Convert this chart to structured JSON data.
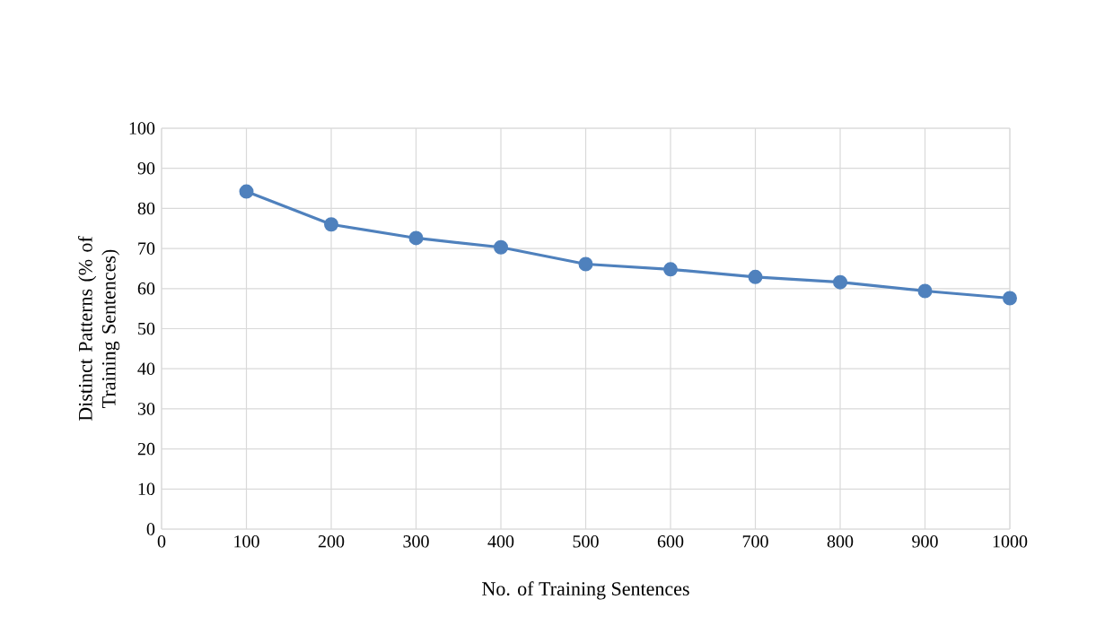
{
  "chart_data": {
    "type": "line",
    "xlabel": "No. of Training Sentences",
    "ylabel": "Distinct Patterns (% of Training Sentences)",
    "x": [
      100,
      200,
      300,
      400,
      500,
      600,
      700,
      800,
      900,
      1000
    ],
    "series": [
      {
        "color": "#4f81bd",
        "values": [
          84.2,
          76.0,
          72.6,
          70.3,
          66.1,
          64.8,
          62.9,
          61.6,
          59.4,
          57.6
        ]
      }
    ],
    "xlim": [
      0,
      1000
    ],
    "ylim": [
      0,
      100
    ],
    "xticks": [
      0,
      100,
      200,
      300,
      400,
      500,
      600,
      700,
      800,
      900,
      1000
    ],
    "yticks": [
      0,
      10,
      20,
      30,
      40,
      50,
      60,
      70,
      80,
      90,
      100
    ],
    "grid": true,
    "marker": "circle",
    "line_style": "solid"
  }
}
